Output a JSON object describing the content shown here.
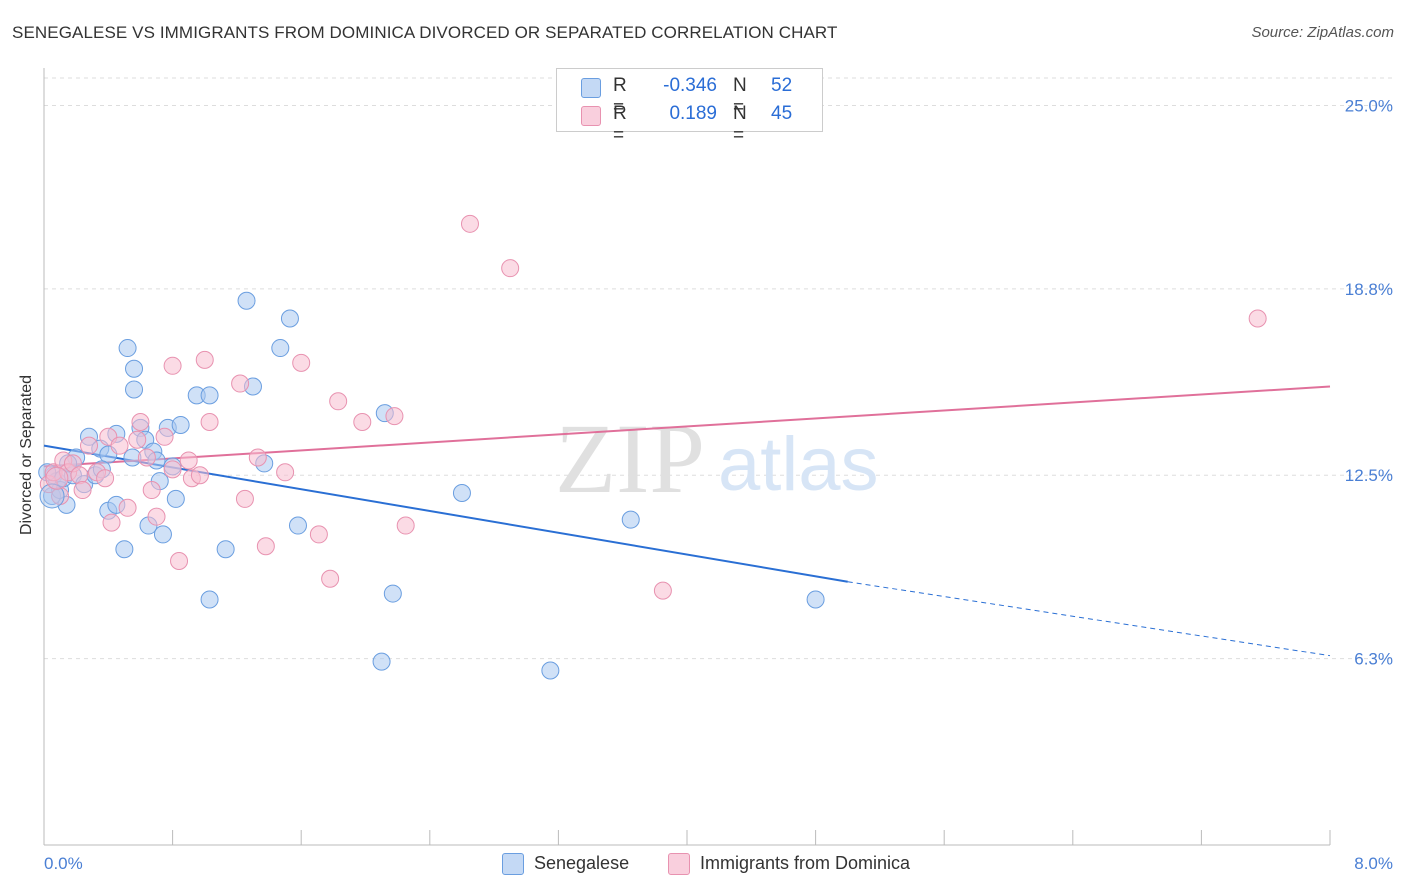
{
  "title": "SENEGALESE VS IMMIGRANTS FROM DOMINICA DIVORCED OR SEPARATED CORRELATION CHART",
  "source": "Source: ZipAtlas.com",
  "watermark": {
    "zip": "ZIP",
    "atlas": "atlas"
  },
  "colors": {
    "blue_fill": "#a9c8f0",
    "blue_stroke": "#6a9ee0",
    "blue_line": "#2a6fd4",
    "pink_fill": "#f7bdd0",
    "pink_stroke": "#e892b0",
    "pink_line": "#e0709a",
    "tick_text": "#4a7fd4",
    "grid": "#dddddd"
  },
  "legend": {
    "rows": [
      {
        "r_label": "R =",
        "r_value": "-0.346",
        "n_label": "N =",
        "n_value": "52"
      },
      {
        "r_label": "R =",
        "r_value": "0.189",
        "n_label": "N =",
        "n_value": "45"
      }
    ]
  },
  "bottom_legend": [
    {
      "label": "Senegalese"
    },
    {
      "label": "Immigrants from Dominica"
    }
  ],
  "chart_data": {
    "type": "scatter",
    "title": "SENEGALESE VS IMMIGRANTS FROM DOMINICA DIVORCED OR SEPARATED CORRELATION CHART",
    "xlabel": "",
    "ylabel": "Divorced or Separated",
    "xlim": [
      0,
      8
    ],
    "ylim": [
      0,
      26.2
    ],
    "x_tick_labels": [
      "0.0%",
      "8.0%"
    ],
    "y_ticks": [
      {
        "value": 6.3,
        "label": "6.3%"
      },
      {
        "value": 12.5,
        "label": "12.5%"
      },
      {
        "value": 18.8,
        "label": "18.8%"
      },
      {
        "value": 25.0,
        "label": "25.0%"
      }
    ],
    "grid": true,
    "legend_position": "top-center",
    "series": [
      {
        "name": "Senegalese",
        "color": "#a9c8f0",
        "trend": {
          "x_start": 0.0,
          "y_start": 13.5,
          "x_solid_end": 5.0,
          "y_solid_end": 8.9,
          "x_end": 8.0,
          "y_end": 6.4
        },
        "points": [
          [
            0.05,
            11.8
          ],
          [
            0.06,
            12.5
          ],
          [
            0.08,
            12.3
          ],
          [
            0.1,
            12.0
          ],
          [
            0.12,
            12.4
          ],
          [
            0.14,
            11.5
          ],
          [
            0.18,
            12.5
          ],
          [
            0.2,
            13.1
          ],
          [
            0.25,
            12.2
          ],
          [
            0.28,
            13.8
          ],
          [
            0.32,
            12.5
          ],
          [
            0.35,
            13.4
          ],
          [
            0.4,
            13.2
          ],
          [
            0.4,
            11.3
          ],
          [
            0.45,
            11.5
          ],
          [
            0.45,
            13.9
          ],
          [
            0.5,
            10.0
          ],
          [
            0.52,
            16.8
          ],
          [
            0.56,
            16.1
          ],
          [
            0.56,
            15.4
          ],
          [
            0.6,
            14.1
          ],
          [
            0.63,
            13.7
          ],
          [
            0.65,
            10.8
          ],
          [
            0.68,
            13.3
          ],
          [
            0.7,
            13.0
          ],
          [
            0.72,
            12.3
          ],
          [
            0.74,
            10.5
          ],
          [
            0.77,
            14.1
          ],
          [
            0.8,
            12.8
          ],
          [
            0.82,
            11.7
          ],
          [
            0.85,
            14.2
          ],
          [
            0.95,
            15.2
          ],
          [
            1.03,
            15.2
          ],
          [
            1.03,
            8.3
          ],
          [
            1.13,
            10.0
          ],
          [
            1.26,
            18.4
          ],
          [
            1.3,
            15.5
          ],
          [
            1.37,
            12.9
          ],
          [
            1.47,
            16.8
          ],
          [
            1.53,
            17.8
          ],
          [
            1.58,
            10.8
          ],
          [
            2.1,
            6.2
          ],
          [
            2.12,
            14.6
          ],
          [
            2.17,
            8.5
          ],
          [
            2.6,
            11.9
          ],
          [
            3.15,
            5.9
          ],
          [
            3.65,
            11.0
          ],
          [
            4.8,
            8.3
          ],
          [
            0.02,
            12.6
          ],
          [
            0.15,
            12.9
          ],
          [
            0.36,
            12.7
          ],
          [
            0.55,
            13.1
          ]
        ]
      },
      {
        "name": "Immigrants from Dominica",
        "color": "#f7bdd0",
        "trend": {
          "x_start": 0.0,
          "y_start": 12.8,
          "x_end": 8.0,
          "y_end": 15.5
        },
        "points": [
          [
            0.03,
            12.2
          ],
          [
            0.06,
            12.6
          ],
          [
            0.1,
            11.8
          ],
          [
            0.12,
            13.0
          ],
          [
            0.15,
            12.6
          ],
          [
            0.18,
            12.9
          ],
          [
            0.22,
            12.5
          ],
          [
            0.24,
            12.0
          ],
          [
            0.28,
            13.5
          ],
          [
            0.33,
            12.6
          ],
          [
            0.38,
            12.4
          ],
          [
            0.4,
            13.8
          ],
          [
            0.42,
            10.9
          ],
          [
            0.47,
            13.5
          ],
          [
            0.52,
            11.4
          ],
          [
            0.58,
            13.7
          ],
          [
            0.6,
            14.3
          ],
          [
            0.64,
            13.1
          ],
          [
            0.67,
            12.0
          ],
          [
            0.7,
            11.1
          ],
          [
            0.75,
            13.8
          ],
          [
            0.8,
            12.7
          ],
          [
            0.8,
            16.2
          ],
          [
            0.84,
            9.6
          ],
          [
            0.9,
            13.0
          ],
          [
            0.92,
            12.4
          ],
          [
            0.97,
            12.5
          ],
          [
            1.0,
            16.4
          ],
          [
            1.03,
            14.3
          ],
          [
            1.22,
            15.6
          ],
          [
            1.25,
            11.7
          ],
          [
            1.33,
            13.1
          ],
          [
            1.38,
            10.1
          ],
          [
            1.5,
            12.6
          ],
          [
            1.6,
            16.3
          ],
          [
            1.71,
            10.5
          ],
          [
            1.78,
            9.0
          ],
          [
            1.83,
            15.0
          ],
          [
            1.98,
            14.3
          ],
          [
            2.18,
            14.5
          ],
          [
            2.25,
            10.8
          ],
          [
            2.65,
            21.0
          ],
          [
            2.9,
            19.5
          ],
          [
            3.85,
            8.6
          ],
          [
            7.55,
            17.8
          ]
        ]
      }
    ]
  }
}
